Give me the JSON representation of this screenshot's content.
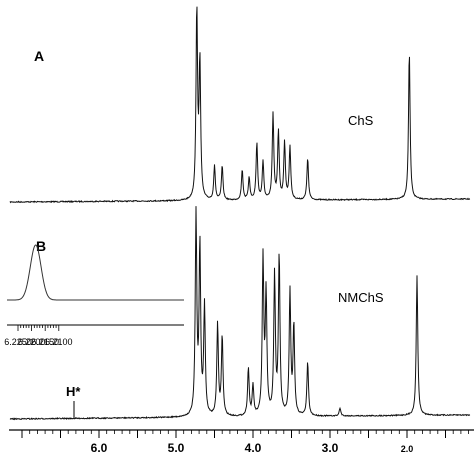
{
  "chart_data": {
    "type": "line",
    "x_axis": {
      "reversed": true,
      "xlim": [
        7.0,
        1.1
      ],
      "ticks": [
        "6.0",
        "5.0",
        "4.0",
        "3.0",
        "2.0"
      ]
    },
    "panels": [
      {
        "label": "A",
        "series_label": "ChS",
        "peaks": [
          {
            "x": 4.73,
            "y": 1.0
          },
          {
            "x": 4.69,
            "y": 0.72
          },
          {
            "x": 4.5,
            "y": 0.18
          },
          {
            "x": 4.4,
            "y": 0.18
          },
          {
            "x": 4.14,
            "y": 0.16
          },
          {
            "x": 4.05,
            "y": 0.12
          },
          {
            "x": 3.95,
            "y": 0.3
          },
          {
            "x": 3.87,
            "y": 0.2
          },
          {
            "x": 3.74,
            "y": 0.45
          },
          {
            "x": 3.67,
            "y": 0.36
          },
          {
            "x": 3.59,
            "y": 0.3
          },
          {
            "x": 3.52,
            "y": 0.28
          },
          {
            "x": 3.29,
            "y": 0.22
          },
          {
            "x": 1.97,
            "y": 0.78
          }
        ]
      },
      {
        "label": "",
        "series_label": "NMChS",
        "annotation": "H*",
        "annotation_x": 6.22,
        "peaks": [
          {
            "x": 4.74,
            "y": 1.0
          },
          {
            "x": 4.69,
            "y": 0.85
          },
          {
            "x": 4.63,
            "y": 0.55
          },
          {
            "x": 4.46,
            "y": 0.46
          },
          {
            "x": 4.4,
            "y": 0.4
          },
          {
            "x": 4.06,
            "y": 0.24
          },
          {
            "x": 4.0,
            "y": 0.15
          },
          {
            "x": 3.87,
            "y": 0.78
          },
          {
            "x": 3.83,
            "y": 0.6
          },
          {
            "x": 3.72,
            "y": 0.7
          },
          {
            "x": 3.66,
            "y": 0.8
          },
          {
            "x": 3.52,
            "y": 0.62
          },
          {
            "x": 3.47,
            "y": 0.45
          },
          {
            "x": 3.29,
            "y": 0.27
          },
          {
            "x": 2.87,
            "y": 0.04
          },
          {
            "x": 1.87,
            "y": 0.7
          }
        ]
      },
      {
        "label": "B",
        "type": "inset",
        "x_axis": {
          "reversed": true,
          "xlim": [
            6.227,
            6.208
          ],
          "ticks": [
            "6.2250",
            "6.2200",
            "6.2150",
            "6.2100"
          ]
        },
        "peaks": [
          {
            "x": 6.2185,
            "y": 1.0
          }
        ]
      }
    ]
  }
}
